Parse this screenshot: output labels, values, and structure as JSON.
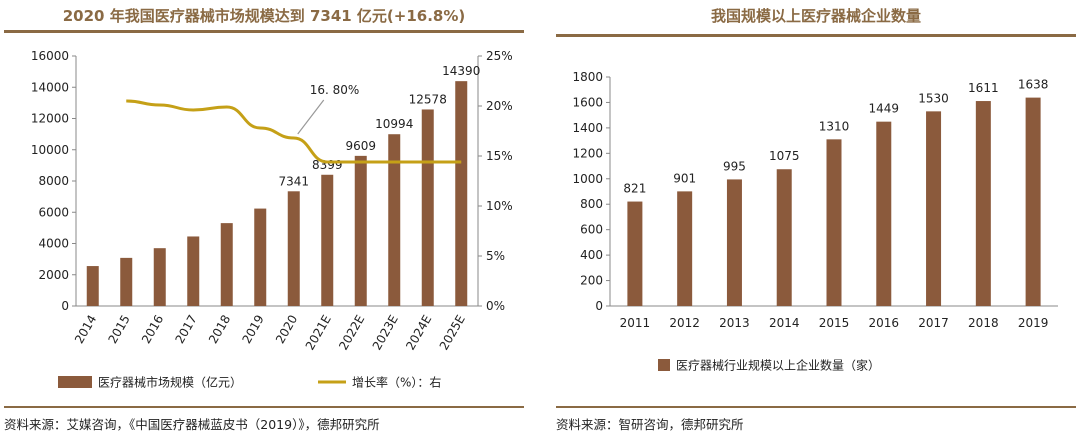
{
  "colors": {
    "bar": "#8b5a3c",
    "line": "#c5a017",
    "accent": "#8a6a44",
    "axis": "#888888"
  },
  "chart_data": [
    {
      "type": "bar",
      "title": "2020 年我国医疗器械市场规模达到 7341 亿元(+16.8%)",
      "categories": [
        "2014",
        "2015",
        "2016",
        "2017",
        "2018",
        "2019",
        "2020",
        "2021E",
        "2022E",
        "2023E",
        "2024E",
        "2025E"
      ],
      "series": [
        {
          "name": "医疗器械市场规模（亿元）",
          "type": "bar",
          "axis": "left",
          "values": [
            2556,
            3080,
            3700,
            4450,
            5304,
            6235,
            7341,
            8399,
            9609,
            10994,
            12578,
            14390
          ]
        },
        {
          "name": "增长率（%）：右",
          "type": "line",
          "axis": "right",
          "values": [
            null,
            20.5,
            20.1,
            19.6,
            19.9,
            17.8,
            16.8,
            14.4,
            14.4,
            14.4,
            14.4,
            14.4
          ]
        }
      ],
      "data_labels": [
        {
          "category": "2020",
          "text": "7341"
        },
        {
          "category": "2021E",
          "text": "8399"
        },
        {
          "category": "2022E",
          "text": "9609"
        },
        {
          "category": "2023E",
          "text": "10994"
        },
        {
          "category": "2024E",
          "text": "12578"
        },
        {
          "category": "2025E",
          "text": "14390"
        }
      ],
      "annotation": "16. 80%",
      "ylim_left": [
        0,
        16000
      ],
      "yticks_left": [
        "0",
        "2000",
        "4000",
        "6000",
        "8000",
        "10000",
        "12000",
        "14000",
        "16000"
      ],
      "ylim_right": [
        0,
        25
      ],
      "yticks_right": [
        "0%",
        "5%",
        "10%",
        "15%",
        "20%",
        "25%"
      ],
      "legend_position": "bottom",
      "grid": false
    },
    {
      "type": "bar",
      "title": "我国规模以上医疗器械企业数量",
      "categories": [
        "2011",
        "2012",
        "2013",
        "2014",
        "2015",
        "2016",
        "2017",
        "2018",
        "2019"
      ],
      "series": [
        {
          "name": "医疗器械行业规模以上企业数量（家）",
          "values": [
            821,
            901,
            995,
            1075,
            1310,
            1449,
            1530,
            1611,
            1638
          ]
        }
      ],
      "ylim": [
        0,
        1800
      ],
      "yticks": [
        "0",
        "200",
        "400",
        "600",
        "800",
        "1000",
        "1200",
        "1400",
        "1600",
        "1800"
      ],
      "legend_position": "bottom",
      "grid": false
    }
  ],
  "sources": {
    "left": "资料来源：艾媒咨询，《中国医疗器械蓝皮书（2019）》，德邦研究所",
    "right": "资料来源：智研咨询，德邦研究所"
  }
}
